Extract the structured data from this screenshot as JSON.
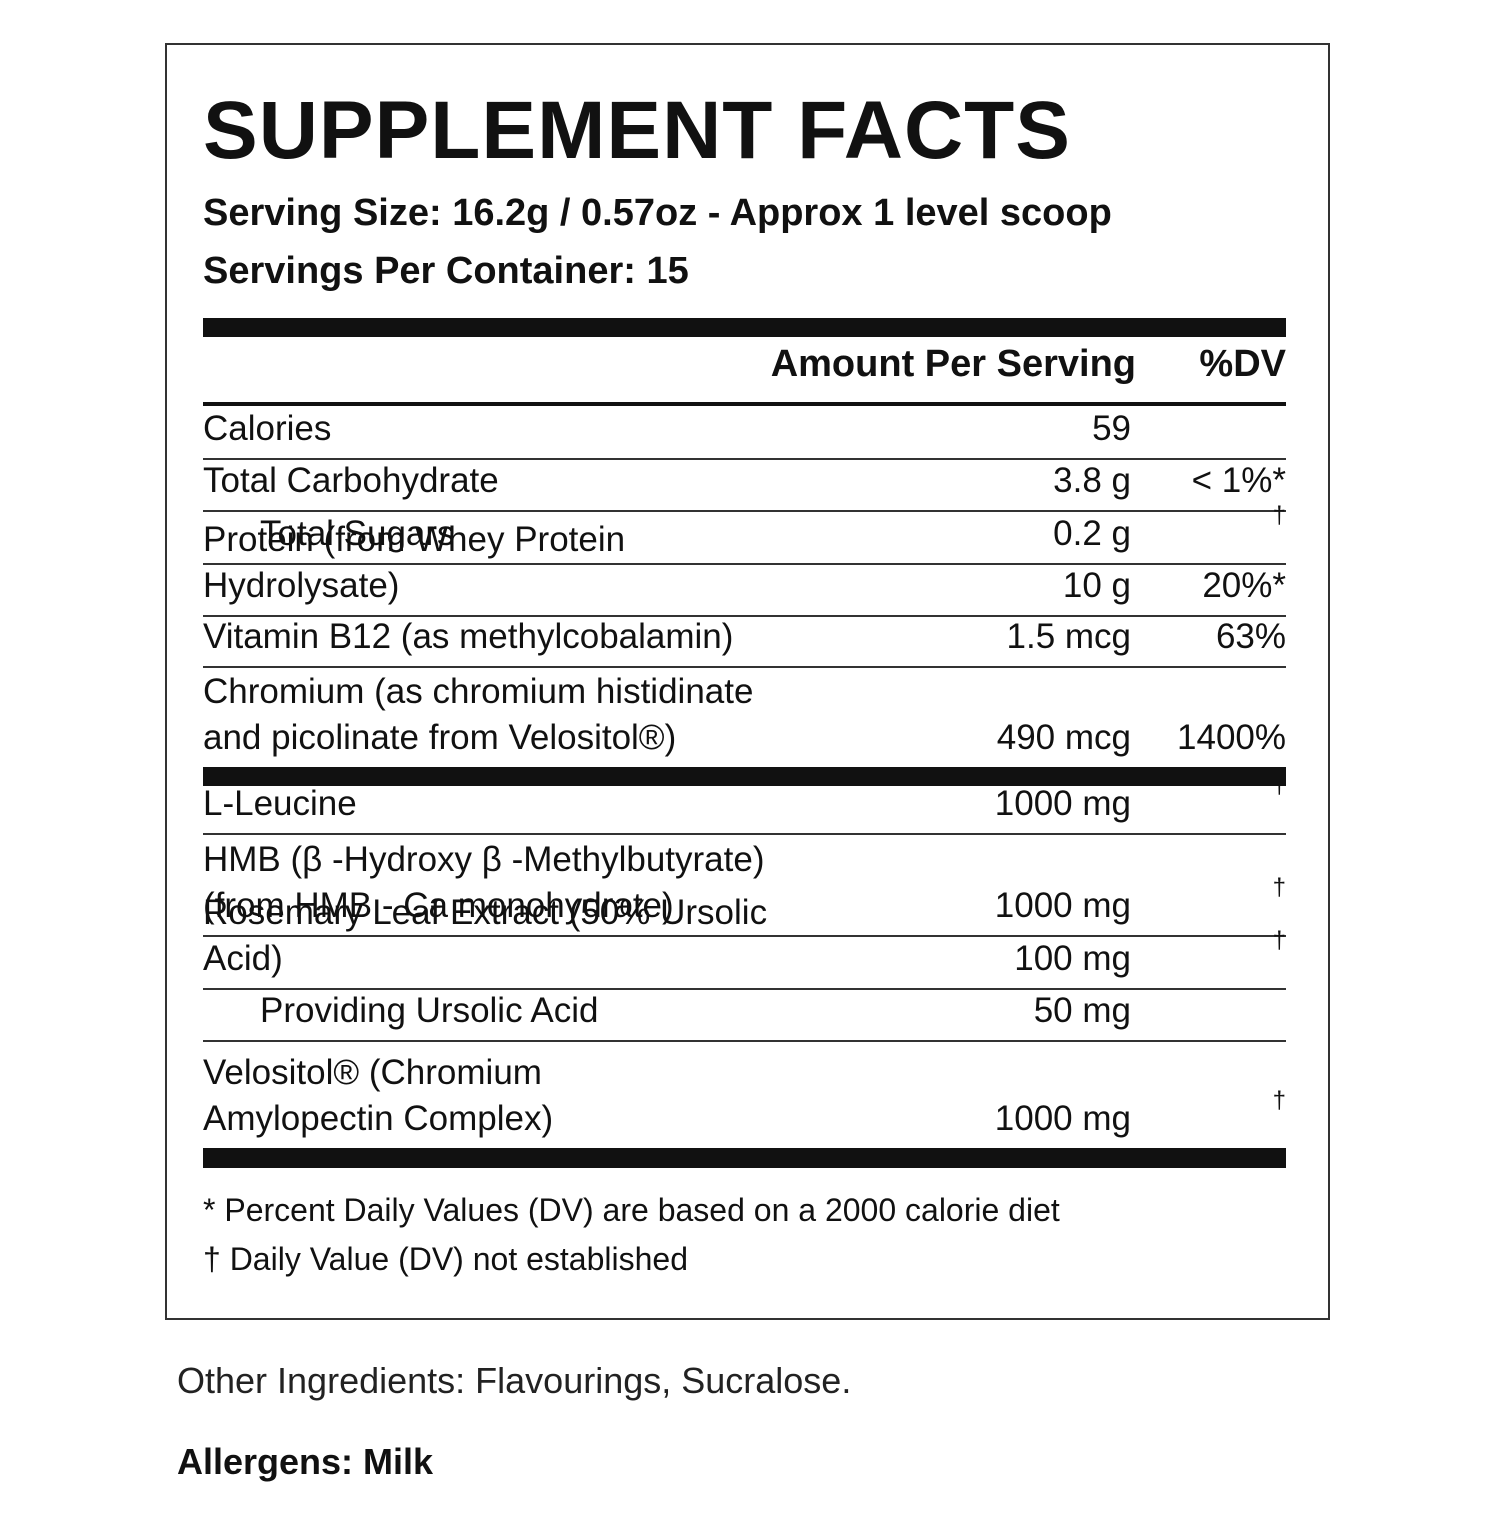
{
  "title": "SUPPLEMENT FACTS",
  "serving_size": "Serving Size: 16.2g / 0.57oz - Approx 1 level scoop",
  "servings_per_container": "Servings Per Container: 15",
  "header": {
    "amount": "Amount Per Serving",
    "dv": "%DV"
  },
  "rows": [
    {
      "name": [
        "Calories"
      ],
      "amount": "59",
      "dv": ""
    },
    {
      "name": [
        "Total Carbohydrate"
      ],
      "amount": "3.8 g",
      "dv": "< 1%*"
    },
    {
      "name": [
        "Total Sugars"
      ],
      "amount": "0.2 g",
      "dv": "†"
    },
    {
      "name": [
        "Protein (from Whey Protein Hydrolysate)"
      ],
      "amount": "10 g",
      "dv": "20%*"
    },
    {
      "name": [
        "Vitamin B12 (as methylcobalamin)"
      ],
      "amount": "1.5 mcg",
      "dv": "63%"
    },
    {
      "name": [
        "Chromium (as chromium histidinate",
        "and picolinate from Velositol®)"
      ],
      "amount": "490 mcg",
      "dv": "1400%"
    },
    {
      "name": [
        "L-Leucine"
      ],
      "amount": "1000 mg",
      "dv": "†"
    },
    {
      "name": [
        "HMB (β -Hydroxy β -Methylbutyrate)",
        "(from HMB - Ca monohydrate)"
      ],
      "amount": "1000 mg",
      "dv": "†"
    },
    {
      "name": [
        "Rosemary Leaf Extract (50% Ursolic Acid)"
      ],
      "amount": "100 mg",
      "dv": "†"
    },
    {
      "name": [
        "Providing Ursolic Acid"
      ],
      "amount": "50 mg",
      "dv": ""
    },
    {
      "name": [
        "Velositol® (Chromium",
        "Amylopectin Complex)"
      ],
      "amount": "1000 mg",
      "dv": "†"
    }
  ],
  "footnotes": [
    "* Percent Daily Values (DV) are based on a 2000 calorie diet",
    "† Daily Value (DV) not established"
  ],
  "other_ingredients": "Other Ingredients: Flavourings, Sucralose.",
  "allergens": "Allergens: Milk"
}
